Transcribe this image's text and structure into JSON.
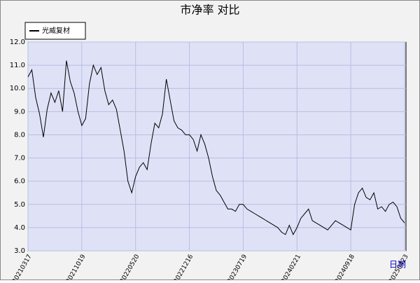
{
  "chart_data": {
    "type": "line",
    "title": "市净率 对比",
    "x_label": "日期",
    "categories": [
      "20210317",
      null,
      null,
      null,
      null,
      null,
      null,
      null,
      null,
      null,
      null,
      null,
      null,
      null,
      "20211019",
      null,
      null,
      null,
      null,
      null,
      null,
      null,
      null,
      null,
      null,
      null,
      null,
      null,
      "20220520",
      null,
      null,
      null,
      null,
      null,
      null,
      null,
      null,
      null,
      null,
      null,
      null,
      null,
      "20221216",
      null,
      null,
      null,
      null,
      null,
      null,
      null,
      null,
      null,
      null,
      null,
      null,
      null,
      "20230719",
      null,
      null,
      null,
      null,
      null,
      null,
      null,
      null,
      null,
      null,
      null,
      null,
      null,
      "20240221",
      null,
      null,
      null,
      null,
      null,
      null,
      null,
      null,
      null,
      null,
      null,
      null,
      null,
      "20240918",
      null,
      null,
      null,
      null,
      null,
      null,
      null,
      null,
      null,
      null,
      null,
      null,
      null,
      "20250423"
    ],
    "series": [
      {
        "name": "光威复材",
        "color": "#000000",
        "values": [
          10.5,
          10.8,
          9.6,
          8.9,
          7.9,
          9.1,
          9.8,
          9.4,
          9.9,
          9.0,
          11.2,
          10.3,
          9.8,
          9.0,
          8.4,
          8.7,
          10.2,
          11.0,
          10.6,
          10.9,
          9.9,
          9.3,
          9.5,
          9.1,
          8.2,
          7.3,
          6.0,
          5.5,
          6.2,
          6.6,
          6.8,
          6.5,
          7.6,
          8.5,
          8.3,
          8.9,
          10.4,
          9.5,
          8.6,
          8.3,
          8.2,
          8.0,
          8.0,
          7.8,
          7.3,
          8.0,
          7.6,
          7.0,
          6.2,
          5.6,
          5.4,
          5.1,
          4.8,
          4.8,
          4.7,
          5.0,
          5.0,
          4.8,
          4.7,
          4.6,
          4.5,
          4.4,
          4.3,
          4.2,
          4.1,
          4.0,
          3.8,
          3.7,
          4.1,
          3.7,
          4.0,
          4.4,
          4.6,
          4.8,
          4.3,
          4.2,
          4.1,
          4.0,
          3.9,
          4.1,
          4.3,
          4.2,
          4.1,
          4.0,
          3.9,
          5.0,
          5.5,
          5.7,
          5.3,
          5.2,
          5.5,
          4.8,
          4.9,
          4.7,
          5.0,
          5.1,
          4.9,
          4.4,
          4.2
        ]
      }
    ],
    "ylim": [
      3,
      12
    ],
    "yticks": [
      {
        "value": 3,
        "label": "3.0"
      },
      {
        "value": 4,
        "label": "4.0"
      },
      {
        "value": 5,
        "label": "5.0"
      },
      {
        "value": 6,
        "label": "6.0"
      },
      {
        "value": 7,
        "label": "7.0"
      },
      {
        "value": 8,
        "label": "8.0"
      },
      {
        "value": 9,
        "label": "9.0"
      },
      {
        "value": 10,
        "label": "10.0"
      },
      {
        "value": 11,
        "label": "11.0"
      },
      {
        "value": 12,
        "label": "12.0"
      }
    ],
    "grid": true,
    "legend": "top-left"
  }
}
